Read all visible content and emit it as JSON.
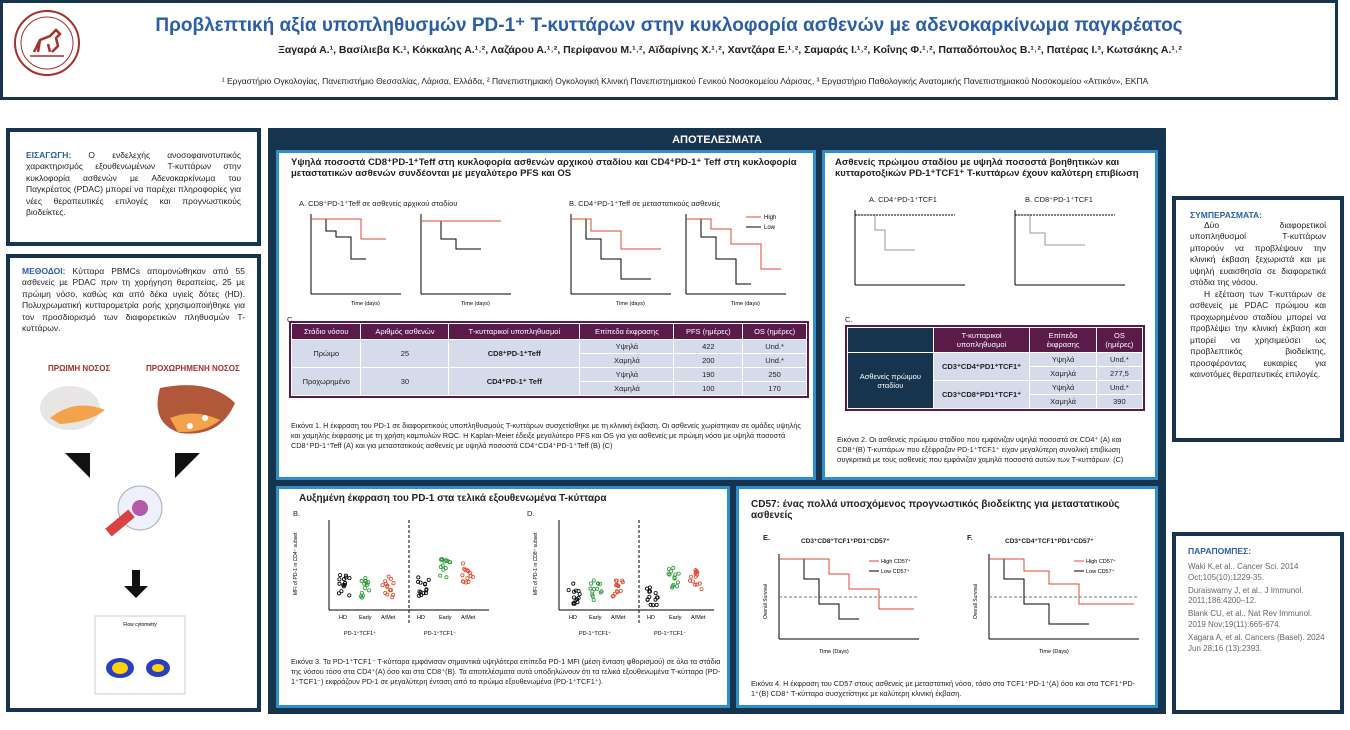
{
  "header": {
    "title": "Προβλεπτική αξία υποπληθυσμών PD-1⁺ T-κυττάρων στην κυκλοφορία ασθενών με αδενοκαρκίνωμα παγκρέατος",
    "authors": "Ξαγαρά Α.¹, Βασίλιεβα Κ.¹, Κόκκαλης Α.¹˒², Λαζάρου Α.¹˒², Περίφανου Μ.¹˒², Αϊδαρίνης Χ.¹˒², Χαντζάρα Ε.¹˒², Σαμαράς Ι.¹˒², Κοΐνης Φ.¹˒², Παπαδόπουλος Β.¹˒², Πατέρας Ι.³, Κωτσάκης Α.¹˒²",
    "affiliations": "¹ Εργαστήριο Ογκολογίας, Πανεπιστήμιο Θεσσαλίας, Λάρισα, Ελλάδα, ² Πανεπιστημιακή Ογκολογική Κλινική Πανεπιστημιακού Γενικού Νοσοκομείου Λάρισας, ³ Εργαστήριο Παθολογικής Ανατομικής Πανεπιστημιακού Νοσοκομείου «Αττικόν», ΕΚΠΑ"
  },
  "intro": {
    "label": "ΕΙΣΑΓΩΓΗ:",
    "text": " Ο ενδελεχής ανοσοφαινοτυπικός χαρακτηρισμός εξουθενωμένων T-κυττάρων στην κυκλοφορία ασθενών με Αδενοκαρκίνωμα του Παγκρέατος (PDAC) μπορεί να παρέχει πληροφορίες για νέες θεραπευτικές επιλογές και προγνωστικούς βιοδείκτες."
  },
  "methods": {
    "label": "ΜΕΘΟΔΟΙ:",
    "text": " Κύτταρα PBMCs απομονώθηκαν από 55 ασθενείς με PDAC πριν τη χορήγηση θεραπείας, 25 με πρώιμη νόσο, καθώς και από δέκα υγιείς δότες (HD). Πολυχρωματική κυτταρομετρία ροής χρησιμοποιήθηκε για τον προσδιορισμό των διαφορετικών πληθυσμών T-κυττάρων.",
    "early": "ΠΡΩΙΜΗ ΝΟΣΟΣ",
    "advanced": "ΠΡΟΧΩΡΗΜΕΝΗ ΝΟΣΟΣ",
    "flow": "Flow cytometry"
  },
  "results": {
    "title": "ΑΠΟΤΕΛΕΣΜΑΤΑ",
    "s1": {
      "title": "Υψηλά ποσοστά CD8⁺PD-1⁺Teff στη κυκλοφορία ασθενών αρχικού σταδίου και CD4⁺PD-1⁺ Teff στη κυκλοφορία μεταστατικών ασθενών συνδέονται με μεγαλύτερο PFS και OS",
      "a": "A. CD8⁺PD-1⁺Teff σε ασθενείς αρχικού σταδίου",
      "b": "B. CD4⁺PD-1⁺Teff σε μεταστατικούς ασθενείς",
      "c": "C.",
      "legend_high": "High",
      "legend_low": "Low",
      "xlab": "Time (days)",
      "table": {
        "headers": [
          "Στάδιο νόσου",
          "Αριθμός ασθενών",
          "T-κυτταρικοί υποπληθυσμοί",
          "Επίπεδα έκφρασης",
          "PFS (ημέρες)",
          "OS (ημέρες)"
        ],
        "rows": [
          [
            "Πρώιμο",
            "25",
            "CD8⁺PD-1⁺Teff",
            "Υψηλά",
            "422",
            "Und.*"
          ],
          [
            "",
            "",
            "",
            "Χαμηλά",
            "200",
            "Und.*"
          ],
          [
            "Προχωρημένο",
            "30",
            "CD4⁺PD-1⁺ Teff",
            "Υψηλά",
            "190",
            "250"
          ],
          [
            "",
            "",
            "",
            "Χαμηλά",
            "100",
            "170"
          ]
        ]
      },
      "caption": "Εικόνα 1. Η έκφραση του PD-1 σε διαφορετικούς υποπληθυσμούς T-κυττάρων συσχετίσθηκε με τη κλινική έκβαση. Οι ασθενείς χωρίστηκαν σε ομάδες υψηλής και χαμηλής έκφρασης με τη χρήση καμπυλών ROC. Η Kaplan-Meier έδειξε μεγαλύτερο PFS και OS για για ασθενείς με πρώιμη νόσο με υψηλά ποσοστά CD8⁺PD-1⁺Teff (A) και για μεταστατικούς ασθενείς με υψηλά ποσοστά CD4⁺CD4⁺PD-1⁺Teff (B) (C)"
    },
    "s2": {
      "title": "Ασθενείς πρώιμου σταδίου με υψηλά ποσοστά βοηθητικών και κυτταροτοξικών PD-1⁺TCF1⁺ T-κυττάρων έχουν καλύτερη επιβίωση",
      "a": "A. CD4⁺PD-1⁺TCF1",
      "b": "B. CD8⁺PD-1⁺TCF1",
      "c": "C.",
      "table": {
        "headers": [
          "T-κυτταρικοί υποπληθυσμοί",
          "Επίπεδα έκφρασης",
          "OS (ημέρες)"
        ],
        "stage": "Ασθενείς πρώιμου σταδίου",
        "rows": [
          [
            "CD3⁺CD4⁺PD1⁺TCF1⁺",
            "Υψηλά",
            "Und.*"
          ],
          [
            "",
            "Χαμηλά",
            "277,5"
          ],
          [
            "CD3⁺CD8⁺PD1⁺TCF1⁺",
            "Υψηλά",
            "Und.*"
          ],
          [
            "",
            "Χαμηλά",
            "390"
          ]
        ]
      },
      "caption": "Εικόνα 2. Οι ασθενείς πρώιμου σταδίου που εμφάνιζαν υψηλά ποσοστά σε CD4⁺ (A) και CD8⁺(B) T-κυττάρων που εξέφραζαν PD-1⁺TCF1⁺ είχαν μεγαλύτερη συνολική επιβίωση συγκριτικά με τους ασθενείς που εμφάνιζαν χαμηλά ποσοστά αυτών των T-κυττάρων. (C)"
    },
    "s3": {
      "title": "Αυξημένη έκφραση του PD-1 στα τελικά εξουθενωμένα T-κύτταρα",
      "b": "B.",
      "d": "D.",
      "groups": [
        "HD",
        "Early",
        "A/Met"
      ],
      "lbl_cd4_left": "PD-1⁺TCF1⁺",
      "lbl_cd4_right": "PD-1⁺TCF1⁻",
      "ylab1": "MFI of PD-1 in CD4⁺ subset",
      "ylab2": "MFI of PD-1 in CD8⁺ subset",
      "caption": "Εικόνα 3. Τα PD-1⁺TCF1⁻ T-κύτταρα εμφάνισαν σημαντικά υψηλότερα επίπεδα PD-1 MFI (μέση ένταση φθορισμού) σε όλα τα στάδια της νόσου τόσο στα CD4⁺(A) όσο και στα CD8⁺(B). Τα αποτελέσματα αυτά υποδηλώνουν ότι τα τελικά εξουθενωμένα T-κύτταρα (PD-1⁺TCF1⁻) εκφράζουν PD-1 σε μεγαλύτερη ένταση από τα πρώιμα εξουθενωμένα (PD-1⁺TCF1⁺)."
    },
    "s4": {
      "title": "CD57: ένας πολλά υποσχόμενος προγνωστικός βιοδείκτης για μεταστατικούς ασθενείς",
      "e": "E.",
      "f": "F.",
      "e_title": "CD3⁺CD8⁺TCF1⁺PD1⁺CD57⁺",
      "f_title": "CD3⁺CD4⁺TCF1⁺PD1⁺CD57⁺",
      "high": "High CD57⁺",
      "low": "Low CD57⁺",
      "xlab": "Time (Days)",
      "ylab": "Overall Survival",
      "caption": "Εικόνα 4. Η έκφραση του CD57 στους ασθενείς με μεταστατική νόσο, τόσο στα TCF1⁺PD-1⁺(A) όσο και στα TCF1⁺PD-1⁺(B) CD8⁺ T-κύτταρα συσχετίστηκε με καλύτερη κλινική έκβαση."
    }
  },
  "conclusions": {
    "label": "ΣΥΜΠΕΡΑΣΜΑΤΑ:",
    "p1": "Δύο διαφορετικοί υποπληθυσμοί T-κυττάρων μπορούν να προβλέψουν την κλινική έκβαση ξεχωριστά και με υψηλή ευαισθησία σε διαφορετικά στάδια της νόσου.",
    "p2": "Η εξέταση των T-κυττάρων σε ασθενείς με PDAC πρώιμου και προχωρημένου σταδίου μπορεί να προβλέψει την κλινική έκβαση και μπορεί να χρησιμεύσει ως προβλεπτικός βιοδείκτης, προσφέροντας ευκαιρίες για καινοτόμες θεραπευτικές επιλογές."
  },
  "references": {
    "label": "ΠΑΡΑΠΟΜΠΕΣ:",
    "items": [
      "Waki K,et al.. Cancer Sci. 2014 Oct;105(10):1229-35.",
      "Duraiswamy J, et al.. J Immunol. 2011;186:4200–12.",
      "Blank CU, et al.. Nat Rev Immunol. 2019 Nov;19(11):665-674.",
      "Xagara A, et al. Cancers (Basel). 2024 Jun 28;16 (13):2393."
    ]
  },
  "colors": {
    "navy": "#17344f",
    "blue": "#2a5fa8",
    "accent": "#2f8fc9",
    "plum": "#5a1a4a",
    "cell": "#d6dbeb",
    "red": "#e24a2f"
  }
}
